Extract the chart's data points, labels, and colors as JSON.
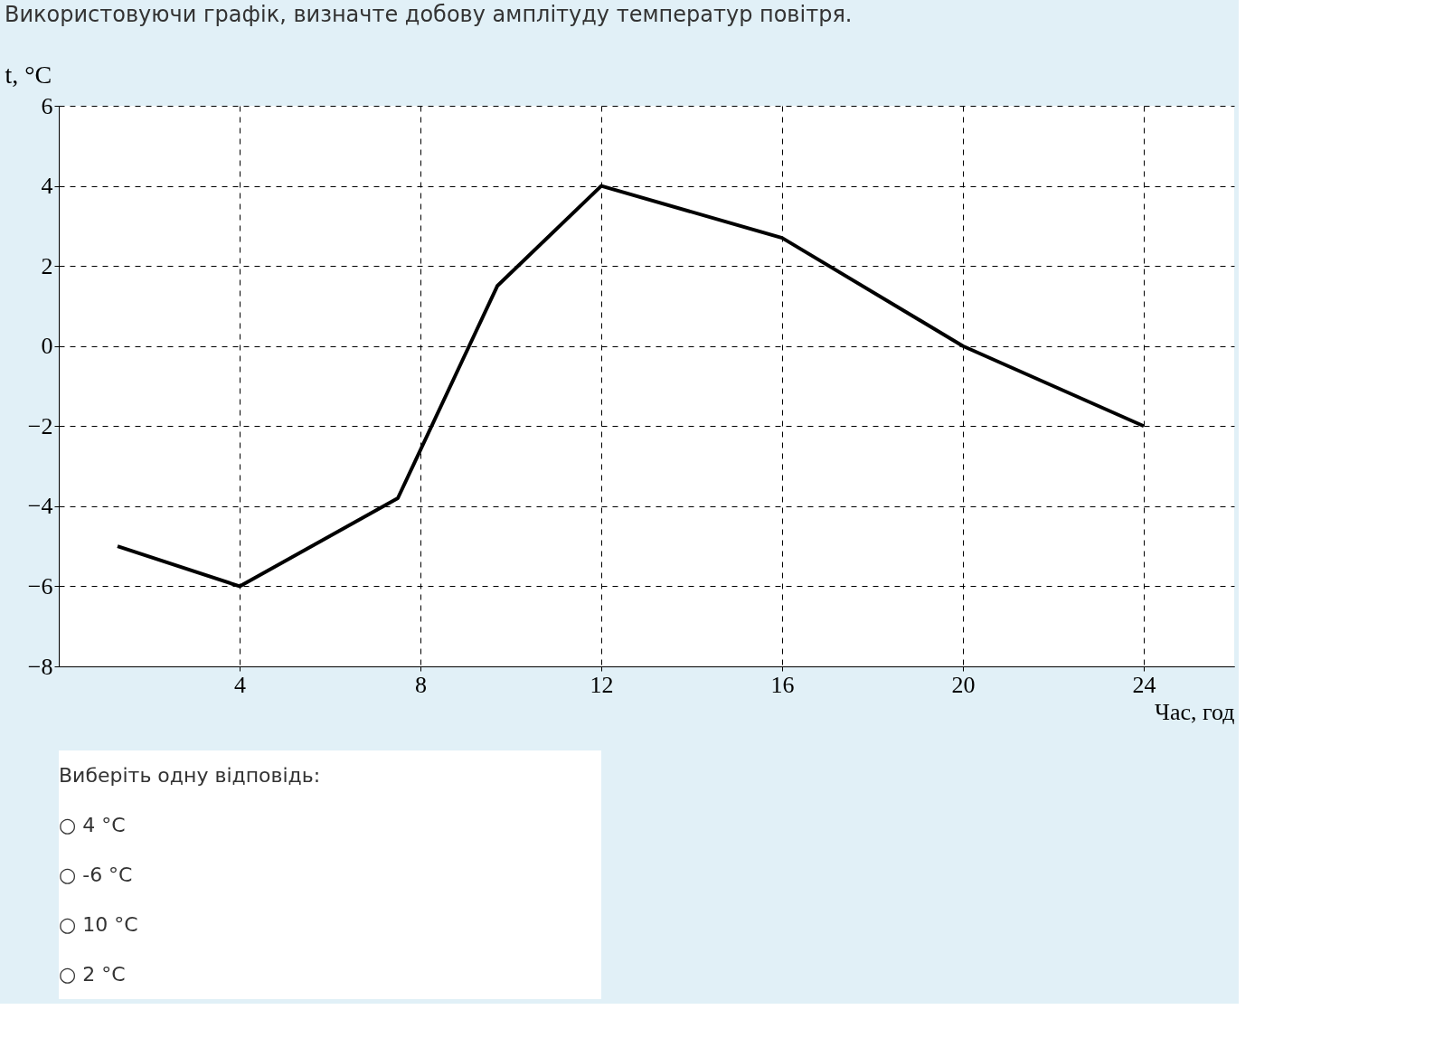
{
  "chart_data": {
    "type": "line",
    "title": "Використовуючи графік, визначте добову амплітуду температур повітря.",
    "xlabel": "Час, год",
    "ylabel": "t, °C",
    "x": [
      1.3,
      4,
      7.5,
      9.7,
      12,
      16,
      20,
      24
    ],
    "series": [
      {
        "color": "#000000",
        "values": [
          -5,
          -6,
          -3.8,
          1.5,
          4,
          2.7,
          0,
          -2
        ]
      }
    ],
    "xlim": [
      0,
      26
    ],
    "xticks": [
      4,
      8,
      12,
      16,
      20,
      24
    ],
    "ylim": [
      -8,
      6
    ],
    "yticks": [
      -8,
      -6,
      -4,
      -2,
      0,
      2,
      4,
      6
    ],
    "grid": true,
    "line_style": "solid",
    "annotations": [
      "Виберіть одну відповідь:",
      "○ 4 °C",
      "○ -6 °C",
      "○ 10 °C",
      "○ 2 °C"
    ]
  }
}
